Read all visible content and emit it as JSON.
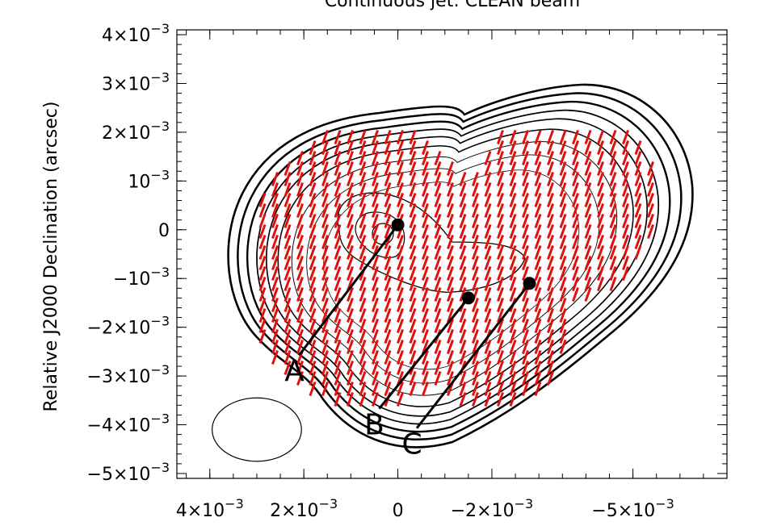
{
  "chart_data": {
    "type": "contour",
    "title": "Continuous jet: CLEAN beam",
    "xlabel": "",
    "ylabel": "Relative J2000 Declination (arcsec)",
    "xlim": [
      0.0047,
      -0.007
    ],
    "ylim": [
      -0.0051,
      0.0041
    ],
    "x_ticks": [
      {
        "value": 0.004,
        "mantissa": "4×10",
        "exp": "−3"
      },
      {
        "value": 0.002,
        "mantissa": "2×10",
        "exp": "−3"
      },
      {
        "value": 0.0,
        "mantissa": "0",
        "exp": ""
      },
      {
        "value": -0.002,
        "mantissa": "−2×10",
        "exp": "−3"
      },
      {
        "value": -0.005,
        "mantissa": "−5×10",
        "exp": "−3"
      }
    ],
    "y_ticks": [
      {
        "value": 0.004,
        "mantissa": "4×10",
        "exp": "−3"
      },
      {
        "value": 0.003,
        "mantissa": "3×10",
        "exp": "−3"
      },
      {
        "value": 0.002,
        "mantissa": "2×10",
        "exp": "−3"
      },
      {
        "value": 0.001,
        "mantissa": "10",
        "exp": "−3"
      },
      {
        "value": 0.0,
        "mantissa": "0",
        "exp": ""
      },
      {
        "value": -0.001,
        "mantissa": "−10",
        "exp": "−3"
      },
      {
        "value": -0.002,
        "mantissa": "−2×10",
        "exp": "−3"
      },
      {
        "value": -0.003,
        "mantissa": "−3×10",
        "exp": "−3"
      },
      {
        "value": -0.004,
        "mantissa": "−4×10",
        "exp": "−3"
      },
      {
        "value": -0.005,
        "mantissa": "−5×10",
        "exp": "−3"
      }
    ],
    "points": [
      {
        "label": "A",
        "x": 0.0,
        "y": 0.0001,
        "label_x": 0.0022,
        "label_y": -0.003
      },
      {
        "label": "B",
        "x": -0.0015,
        "y": -0.0014,
        "label_x": 0.0005,
        "label_y": -0.0041
      },
      {
        "label": "C",
        "x": -0.0028,
        "y": -0.0011,
        "label_x": -0.0003,
        "label_y": -0.0045
      }
    ],
    "beam": {
      "x": 0.003,
      "y": -0.0041,
      "width": 0.0019,
      "height": 0.0013
    },
    "colors": {
      "contour": "#000000",
      "vectors": "#e01010",
      "markers": "#000000"
    }
  }
}
